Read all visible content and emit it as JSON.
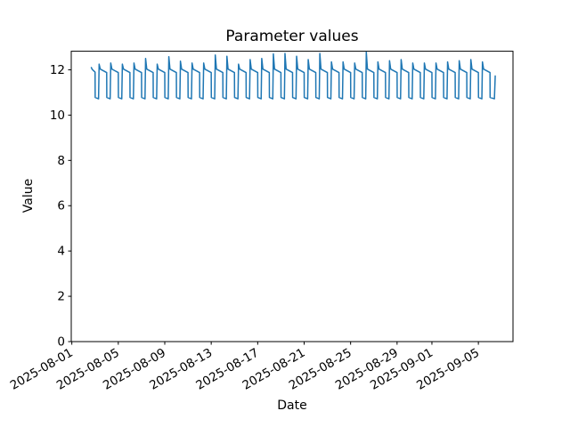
{
  "chart_data": {
    "type": "line",
    "title": "Parameter values",
    "xlabel": "Date",
    "ylabel": "Value",
    "line_color": "#1f77b4",
    "background_color": "#ffffff",
    "grid": false,
    "legend": null,
    "x_unit": "days since 2025-08-01 00:00",
    "xlim": [
      -0.05,
      37.98
    ],
    "ylim": [
      0,
      12.82
    ],
    "y_ticks": [
      0,
      2,
      4,
      6,
      8,
      10,
      12
    ],
    "x_ticks": [
      {
        "t": 0,
        "label": "2025-08-01"
      },
      {
        "t": 4,
        "label": "2025-08-05"
      },
      {
        "t": 8,
        "label": "2025-08-09"
      },
      {
        "t": 12,
        "label": "2025-08-13"
      },
      {
        "t": 16,
        "label": "2025-08-17"
      },
      {
        "t": 20,
        "label": "2025-08-21"
      },
      {
        "t": 24,
        "label": "2025-08-25"
      },
      {
        "t": 28,
        "label": "2025-08-29"
      },
      {
        "t": 31,
        "label": "2025-09-01"
      },
      {
        "t": 35,
        "label": "2025-09-05"
      }
    ],
    "points": [
      [
        1.68,
        12.1
      ],
      [
        1.75,
        12.02
      ],
      [
        2.0,
        11.9
      ],
      [
        2.01,
        10.78
      ],
      [
        2.3,
        10.72
      ],
      [
        2.35,
        12.25
      ],
      [
        2.45,
        12.03
      ],
      [
        3.0,
        11.88
      ],
      [
        3.01,
        10.78
      ],
      [
        3.3,
        10.72
      ],
      [
        3.35,
        12.3
      ],
      [
        3.45,
        12.03
      ],
      [
        4.0,
        11.88
      ],
      [
        4.01,
        10.78
      ],
      [
        4.3,
        10.72
      ],
      [
        4.35,
        12.25
      ],
      [
        4.45,
        12.03
      ],
      [
        5.0,
        11.88
      ],
      [
        5.01,
        10.78
      ],
      [
        5.3,
        10.72
      ],
      [
        5.35,
        12.3
      ],
      [
        5.45,
        12.03
      ],
      [
        6.0,
        11.88
      ],
      [
        6.01,
        10.78
      ],
      [
        6.3,
        10.72
      ],
      [
        6.35,
        12.5
      ],
      [
        6.45,
        12.03
      ],
      [
        7.0,
        11.88
      ],
      [
        7.01,
        10.78
      ],
      [
        7.3,
        10.72
      ],
      [
        7.35,
        12.25
      ],
      [
        7.45,
        12.03
      ],
      [
        8.0,
        11.88
      ],
      [
        8.01,
        10.78
      ],
      [
        8.3,
        10.72
      ],
      [
        8.35,
        12.58
      ],
      [
        8.45,
        12.03
      ],
      [
        9.0,
        11.88
      ],
      [
        9.01,
        10.78
      ],
      [
        9.3,
        10.72
      ],
      [
        9.35,
        12.38
      ],
      [
        9.45,
        12.03
      ],
      [
        10.0,
        11.88
      ],
      [
        10.01,
        10.78
      ],
      [
        10.3,
        10.72
      ],
      [
        10.35,
        12.3
      ],
      [
        10.45,
        12.03
      ],
      [
        11.0,
        11.88
      ],
      [
        11.01,
        10.78
      ],
      [
        11.3,
        10.72
      ],
      [
        11.35,
        12.3
      ],
      [
        11.45,
        12.03
      ],
      [
        12.0,
        11.88
      ],
      [
        12.01,
        10.78
      ],
      [
        12.3,
        10.72
      ],
      [
        12.35,
        12.65
      ],
      [
        12.45,
        12.03
      ],
      [
        13.0,
        11.88
      ],
      [
        13.01,
        10.78
      ],
      [
        13.3,
        10.72
      ],
      [
        13.35,
        12.6
      ],
      [
        13.45,
        12.03
      ],
      [
        14.0,
        11.88
      ],
      [
        14.01,
        10.78
      ],
      [
        14.3,
        10.72
      ],
      [
        14.35,
        12.25
      ],
      [
        14.45,
        12.03
      ],
      [
        15.0,
        11.88
      ],
      [
        15.01,
        10.78
      ],
      [
        15.3,
        10.72
      ],
      [
        15.35,
        12.45
      ],
      [
        15.45,
        12.03
      ],
      [
        16.0,
        11.88
      ],
      [
        16.01,
        10.78
      ],
      [
        16.3,
        10.72
      ],
      [
        16.35,
        12.5
      ],
      [
        16.45,
        12.03
      ],
      [
        17.0,
        11.88
      ],
      [
        17.01,
        10.78
      ],
      [
        17.3,
        10.72
      ],
      [
        17.35,
        12.7
      ],
      [
        17.45,
        12.03
      ],
      [
        18.0,
        11.88
      ],
      [
        18.01,
        10.78
      ],
      [
        18.3,
        10.72
      ],
      [
        18.35,
        12.72
      ],
      [
        18.45,
        12.03
      ],
      [
        19.0,
        11.88
      ],
      [
        19.01,
        10.78
      ],
      [
        19.3,
        10.72
      ],
      [
        19.35,
        12.6
      ],
      [
        19.45,
        12.03
      ],
      [
        20.0,
        11.88
      ],
      [
        20.01,
        10.78
      ],
      [
        20.3,
        10.72
      ],
      [
        20.35,
        12.45
      ],
      [
        20.45,
        12.03
      ],
      [
        21.0,
        11.88
      ],
      [
        21.01,
        10.78
      ],
      [
        21.3,
        10.72
      ],
      [
        21.35,
        12.72
      ],
      [
        21.45,
        12.03
      ],
      [
        22.0,
        11.88
      ],
      [
        22.01,
        10.78
      ],
      [
        22.3,
        10.72
      ],
      [
        22.35,
        12.35
      ],
      [
        22.45,
        12.03
      ],
      [
        23.0,
        11.88
      ],
      [
        23.01,
        10.78
      ],
      [
        23.3,
        10.72
      ],
      [
        23.35,
        12.35
      ],
      [
        23.45,
        12.03
      ],
      [
        24.0,
        11.88
      ],
      [
        24.01,
        10.78
      ],
      [
        24.3,
        10.72
      ],
      [
        24.35,
        12.3
      ],
      [
        24.45,
        12.03
      ],
      [
        25.0,
        11.88
      ],
      [
        25.01,
        10.78
      ],
      [
        25.3,
        10.72
      ],
      [
        25.35,
        12.78
      ],
      [
        25.45,
        12.03
      ],
      [
        26.0,
        11.88
      ],
      [
        26.01,
        10.78
      ],
      [
        26.3,
        10.72
      ],
      [
        26.35,
        12.35
      ],
      [
        26.45,
        12.03
      ],
      [
        27.0,
        11.88
      ],
      [
        27.01,
        10.78
      ],
      [
        27.3,
        10.72
      ],
      [
        27.35,
        12.4
      ],
      [
        27.45,
        12.03
      ],
      [
        28.0,
        11.88
      ],
      [
        28.01,
        10.78
      ],
      [
        28.3,
        10.72
      ],
      [
        28.35,
        12.45
      ],
      [
        28.45,
        12.03
      ],
      [
        29.0,
        11.88
      ],
      [
        29.01,
        10.78
      ],
      [
        29.3,
        10.72
      ],
      [
        29.35,
        12.3
      ],
      [
        29.45,
        12.03
      ],
      [
        30.0,
        11.88
      ],
      [
        30.01,
        10.78
      ],
      [
        30.3,
        10.72
      ],
      [
        30.35,
        12.3
      ],
      [
        30.45,
        12.03
      ],
      [
        31.0,
        11.88
      ],
      [
        31.01,
        10.78
      ],
      [
        31.3,
        10.72
      ],
      [
        31.35,
        12.3
      ],
      [
        31.45,
        12.03
      ],
      [
        32.0,
        11.88
      ],
      [
        32.01,
        10.78
      ],
      [
        32.3,
        10.72
      ],
      [
        32.35,
        12.35
      ],
      [
        32.45,
        12.03
      ],
      [
        33.0,
        11.88
      ],
      [
        33.01,
        10.78
      ],
      [
        33.3,
        10.72
      ],
      [
        33.35,
        12.4
      ],
      [
        33.45,
        12.03
      ],
      [
        34.0,
        11.88
      ],
      [
        34.01,
        10.78
      ],
      [
        34.3,
        10.72
      ],
      [
        34.35,
        12.45
      ],
      [
        34.45,
        12.03
      ],
      [
        35.0,
        11.88
      ],
      [
        35.01,
        10.78
      ],
      [
        35.3,
        10.72
      ],
      [
        35.35,
        12.35
      ],
      [
        35.45,
        12.03
      ],
      [
        36.0,
        11.88
      ],
      [
        36.01,
        10.78
      ],
      [
        36.38,
        10.72
      ],
      [
        36.45,
        11.73
      ]
    ]
  }
}
